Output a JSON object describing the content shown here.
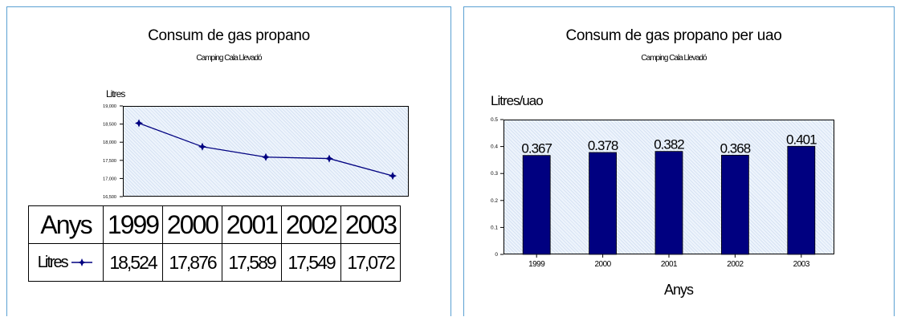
{
  "chart_data": [
    {
      "type": "line",
      "title": "Consum de gas propano",
      "subtitle": "Camping Cala Llevadó",
      "ylabel": "Litres",
      "categories": [
        "1999",
        "2000",
        "2001",
        "2002",
        "2003"
      ],
      "series": [
        {
          "name": "Litres",
          "values": [
            18524,
            17876,
            17589,
            17549,
            17072
          ]
        }
      ],
      "ylim": [
        16500,
        19000
      ],
      "yticks": [
        "16,500",
        "17,000",
        "17,500",
        "18,000",
        "18,500",
        "19,000"
      ],
      "ytick_values": [
        16500,
        17000,
        17500,
        18000,
        18500,
        19000
      ],
      "table": {
        "header_label": "Anys",
        "row_label": "Litres",
        "values": [
          "18,524",
          "17,876",
          "17,589",
          "17,549",
          "17,072"
        ]
      },
      "color": "#000080"
    },
    {
      "type": "bar",
      "title": "Consum de gas propano per uao",
      "subtitle": "Camping Cala Llevadó",
      "ylabel": "Litres/uao",
      "xlabel": "Anys",
      "categories": [
        "1999",
        "2000",
        "2001",
        "2002",
        "2003"
      ],
      "values": [
        0.367,
        0.378,
        0.382,
        0.368,
        0.401
      ],
      "value_labels": [
        "0.367",
        "0.378",
        "0.382",
        "0.368",
        "0.401"
      ],
      "ylim": [
        0,
        0.5
      ],
      "yticks": [
        "0",
        "0.1",
        "0.2",
        "0.3",
        "0.4",
        "0.5"
      ],
      "ytick_values": [
        0,
        0.1,
        0.2,
        0.3,
        0.4,
        0.5
      ],
      "color": "#000080"
    }
  ]
}
